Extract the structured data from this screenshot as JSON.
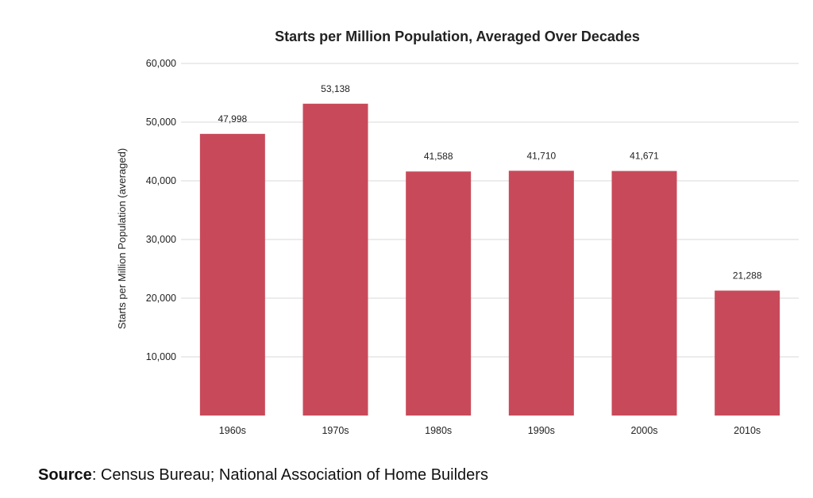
{
  "chart_data": {
    "type": "bar",
    "title": "Starts per Million Population, Averaged Over Decades",
    "xlabel": "",
    "ylabel": "Starts per Million Population (averaged)",
    "categories": [
      "1960s",
      "1970s",
      "1980s",
      "1990s",
      "2000s",
      "2010s"
    ],
    "values": [
      47998,
      53138,
      41588,
      41710,
      41671,
      21288
    ],
    "data_labels": [
      "47,998",
      "53,138",
      "41,588",
      "41,710",
      "41,671",
      "21,288"
    ],
    "ylim": [
      0,
      60000
    ],
    "yticks": [
      10000,
      20000,
      30000,
      40000,
      50000,
      60000
    ],
    "ytick_labels": [
      "10,000",
      "20,000",
      "30,000",
      "40,000",
      "50,000",
      "60,000"
    ],
    "grid": true,
    "legend": "none",
    "bar_color": "#c84a5a"
  },
  "source": {
    "label": "Source",
    "text": ": Census Bureau; National Association of Home Builders"
  }
}
